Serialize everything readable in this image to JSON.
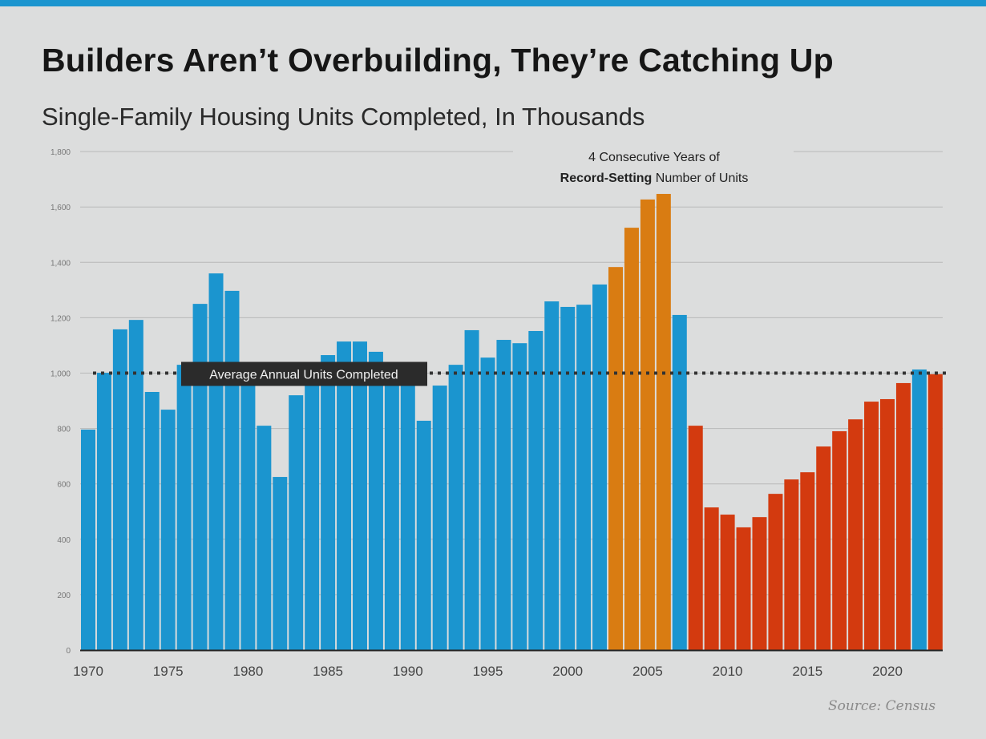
{
  "header": {
    "title": "Builders Aren’t Overbuilding, They’re Catching Up",
    "subtitle": "Single-Family Housing Units Completed, In Thousands"
  },
  "source": "Source: Census",
  "colors": {
    "blue": "#1b95cf",
    "orange": "#d97c12",
    "red": "#d33a0f",
    "average_line": "#333333",
    "background": "#dcdddd"
  },
  "chart_data": {
    "type": "bar",
    "title": "Builders Aren’t Overbuilding, They’re Catching Up",
    "subtitle": "Single-Family Housing Units Completed, In Thousands",
    "xlabel": "",
    "ylabel": "",
    "ylim": [
      0,
      1800
    ],
    "yticks": [
      0,
      200,
      400,
      600,
      800,
      1000,
      1200,
      1400,
      1600,
      1800
    ],
    "ytick_labels": [
      "0",
      "200",
      "400",
      "600",
      "800",
      "1,000",
      "1,200",
      "1,400",
      "1,600",
      "1,800"
    ],
    "xtick_labels": [
      "1970",
      "1975",
      "1980",
      "1985",
      "1990",
      "1995",
      "2000",
      "2005",
      "2010",
      "2015",
      "2020"
    ],
    "grid": true,
    "categories": [
      1970,
      1971,
      1972,
      1973,
      1974,
      1975,
      1976,
      1977,
      1978,
      1979,
      1980,
      1981,
      1982,
      1983,
      1984,
      1985,
      1986,
      1987,
      1988,
      1989,
      1990,
      1991,
      1992,
      1993,
      1994,
      1995,
      1996,
      1997,
      1998,
      1999,
      2000,
      2001,
      2002,
      2003,
      2004,
      2005,
      2006,
      2007,
      2008,
      2009,
      2010,
      2011,
      2012,
      2013,
      2014,
      2015,
      2016,
      2017,
      2018,
      2019,
      2020,
      2021,
      2022,
      2023
    ],
    "values": [
      796,
      1001,
      1158,
      1192,
      932,
      868,
      1030,
      1250,
      1360,
      1297,
      958,
      810,
      625,
      920,
      1027,
      1065,
      1114,
      1114,
      1077,
      1026,
      966,
      828,
      955,
      1030,
      1155,
      1056,
      1120,
      1108,
      1152,
      1259,
      1239,
      1247,
      1320,
      1383,
      1525,
      1627,
      1647,
      1210,
      810,
      515,
      489,
      443,
      480,
      564,
      616,
      642,
      735,
      790,
      833,
      897,
      906,
      964,
      1013,
      996
    ],
    "bar_colors": [
      "blue",
      "blue",
      "blue",
      "blue",
      "blue",
      "blue",
      "blue",
      "blue",
      "blue",
      "blue",
      "blue",
      "blue",
      "blue",
      "blue",
      "blue",
      "blue",
      "blue",
      "blue",
      "blue",
      "blue",
      "blue",
      "blue",
      "blue",
      "blue",
      "blue",
      "blue",
      "blue",
      "blue",
      "blue",
      "blue",
      "blue",
      "blue",
      "blue",
      "orange",
      "orange",
      "orange",
      "orange",
      "blue",
      "red",
      "red",
      "red",
      "red",
      "red",
      "red",
      "red",
      "red",
      "red",
      "red",
      "red",
      "red",
      "red",
      "red",
      "blue",
      "red"
    ],
    "reference_line": {
      "value": 1000,
      "label": "Average Annual Units Completed",
      "style": "dotted"
    },
    "annotations": [
      {
        "line1": "4 Consecutive Years of",
        "line2_bold": "Record-Setting",
        "line2_rest": " Number of Units"
      }
    ]
  }
}
